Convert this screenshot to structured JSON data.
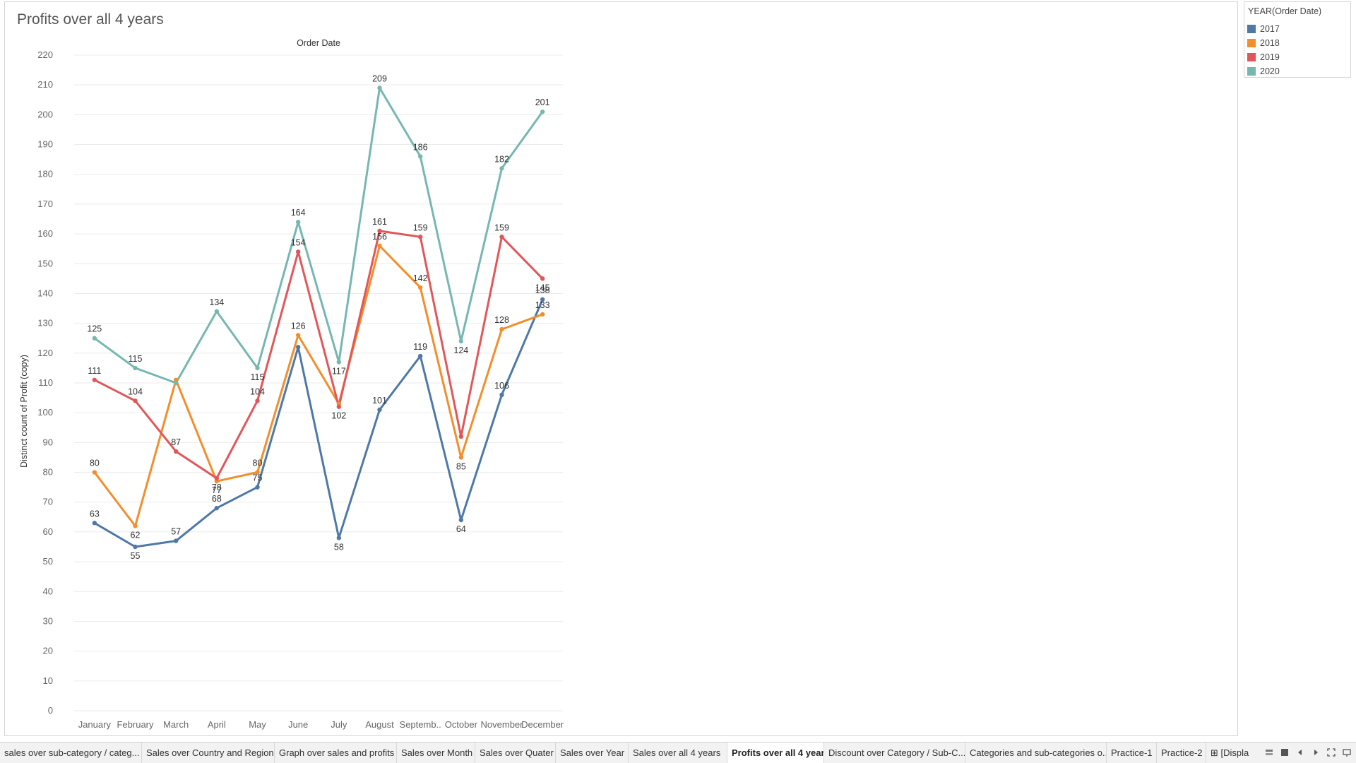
{
  "worksheet": {
    "title": "Profits over all 4 years"
  },
  "colors": {
    "2017": "#4e79a7",
    "2018": "#f28e2b",
    "2019": "#e15759",
    "2020": "#76b7b2",
    "grid": "#ebebeb"
  },
  "legend": {
    "title": "YEAR(Order Date)",
    "items": [
      {
        "label": "2017",
        "color": "#4e79a7"
      },
      {
        "label": "2018",
        "color": "#f28e2b"
      },
      {
        "label": "2019",
        "color": "#e15759"
      },
      {
        "label": "2020",
        "color": "#76b7b2"
      }
    ]
  },
  "chart_data": {
    "type": "line",
    "title": "Profits over all 4 years",
    "column_header": "Order Date",
    "xlabel": "",
    "ylabel": "Distinct count of Profit (copy)",
    "ylim": [
      0,
      220
    ],
    "yticks": [
      0,
      10,
      20,
      30,
      40,
      50,
      60,
      70,
      80,
      90,
      100,
      110,
      120,
      130,
      140,
      150,
      160,
      170,
      180,
      190,
      200,
      210,
      220
    ],
    "grid": true,
    "legend_placement": "top-right",
    "categories": [
      "January",
      "February",
      "March",
      "April",
      "May",
      "June",
      "July",
      "August",
      "Septemb..",
      "October",
      "November",
      "December"
    ],
    "series": [
      {
        "name": "2017",
        "color": "#4e79a7",
        "values": [
          63,
          55,
          57,
          68,
          75,
          122,
          58,
          101,
          119,
          64,
          106,
          138
        ],
        "labels": [
          "63",
          "55",
          "57",
          "68",
          "75",
          "",
          "58",
          "101",
          "119",
          "64",
          "106",
          "138"
        ]
      },
      {
        "name": "2018",
        "color": "#f28e2b",
        "values": [
          80,
          62,
          111,
          77,
          80,
          126,
          103,
          156,
          142,
          85,
          128,
          133
        ],
        "labels": [
          "80",
          "62",
          "",
          "77",
          "80",
          "126",
          "",
          "156",
          "142",
          "85",
          "128",
          "133"
        ]
      },
      {
        "name": "2019",
        "color": "#e15759",
        "values": [
          111,
          104,
          87,
          78,
          104,
          154,
          102,
          161,
          159,
          92,
          159,
          145
        ],
        "labels": [
          "111",
          "104",
          "87",
          "78",
          "104",
          "154",
          "102",
          "161",
          "159",
          "",
          "159",
          "145"
        ]
      },
      {
        "name": "2020",
        "color": "#76b7b2",
        "values": [
          125,
          115,
          110,
          134,
          115,
          164,
          117,
          209,
          186,
          124,
          182,
          201
        ],
        "labels": [
          "125",
          "115",
          "",
          "134",
          "115",
          "164",
          "117",
          "209",
          "186",
          "124",
          "182",
          "201"
        ]
      }
    ]
  },
  "tabs": [
    {
      "label": "sales over sub-category / categ...",
      "active": false
    },
    {
      "label": "Sales over Country and Region",
      "active": false
    },
    {
      "label": "Graph over sales and profits",
      "active": false
    },
    {
      "label": "Sales over Month",
      "active": false
    },
    {
      "label": "Sales over Quater",
      "active": false
    },
    {
      "label": "Sales over Year",
      "active": false
    },
    {
      "label": "Sales over all 4 years",
      "active": false
    },
    {
      "label": "Profits over all 4 years",
      "active": true
    },
    {
      "label": "Discount over Category / Sub-C...",
      "active": false
    },
    {
      "label": "Categories and sub-categories o...",
      "active": false
    },
    {
      "label": "Practice-1",
      "active": false
    },
    {
      "label": "Practice-2",
      "active": false
    },
    {
      "label": "⊞ [Displa",
      "active": false
    }
  ],
  "tabbar_controls": [
    "show-filmstrip-icon",
    "show-sheet-sorter-icon",
    "prev-sheet-icon",
    "next-sheet-icon",
    "fullscreen-icon",
    "presentation-icon"
  ]
}
